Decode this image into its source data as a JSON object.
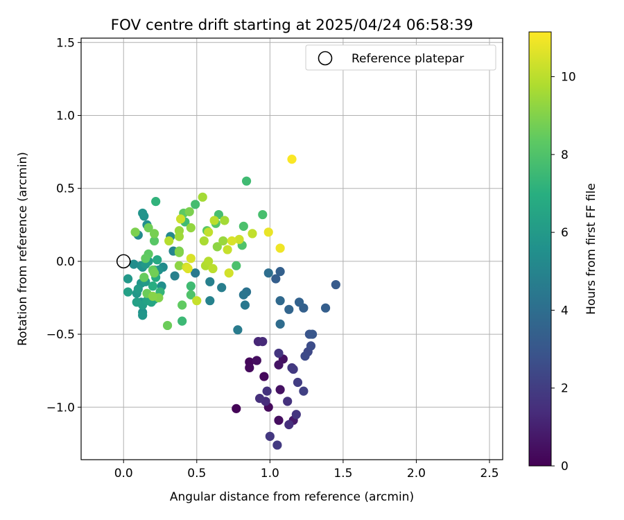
{
  "chart_data": {
    "type": "scatter",
    "title": "FOV centre drift starting at 2025/04/24 06:58:39",
    "xlabel": "Angular distance from reference (arcmin)",
    "ylabel": "Rotation from reference (arcmin)",
    "xlim": [
      -0.29,
      2.59
    ],
    "ylim": [
      -1.36,
      1.53
    ],
    "xticks": [
      0.0,
      0.5,
      1.0,
      1.5,
      2.0,
      2.5
    ],
    "xtick_labels": [
      "0.0",
      "0.5",
      "1.0",
      "1.5",
      "2.0",
      "2.5"
    ],
    "yticks": [
      -1.0,
      -0.5,
      0.0,
      0.5,
      1.0,
      1.5
    ],
    "ytick_labels": [
      "−1.0",
      "−0.5",
      "0.0",
      "0.5",
      "1.0",
      "1.5"
    ],
    "grid": true,
    "legend": {
      "placement": "top-right",
      "entries": [
        {
          "label": "Reference platepar",
          "marker": "open-circle",
          "color": "#000000"
        }
      ]
    },
    "reference_point": {
      "x": 0.0,
      "y": 0.0
    },
    "colorbar": {
      "label": "Hours from first FF file",
      "colormap": "viridis",
      "range": [
        0,
        11.15
      ],
      "ticks": [
        0,
        2,
        4,
        6,
        8,
        10
      ],
      "tick_labels": [
        "0",
        "2",
        "4",
        "6",
        "8",
        "10"
      ]
    },
    "series": [
      {
        "color_by": "hours",
        "points": [
          {
            "x": 0.77,
            "y": -1.01,
            "c": 0.1
          },
          {
            "x": 0.86,
            "y": -0.69,
            "c": 0.2
          },
          {
            "x": 0.86,
            "y": -0.73,
            "c": 0.3
          },
          {
            "x": 0.91,
            "y": -0.68,
            "c": 0.4
          },
          {
            "x": 0.96,
            "y": -0.79,
            "c": 0.2
          },
          {
            "x": 0.99,
            "y": -1.0,
            "c": 0.3
          },
          {
            "x": 1.06,
            "y": -1.09,
            "c": 0.4
          },
          {
            "x": 1.07,
            "y": -0.88,
            "c": 0.5
          },
          {
            "x": 1.09,
            "y": -0.67,
            "c": 0.5
          },
          {
            "x": 1.06,
            "y": -0.71,
            "c": 0.6
          },
          {
            "x": 1.16,
            "y": -1.09,
            "c": 0.8
          },
          {
            "x": 0.92,
            "y": -0.55,
            "c": 1.2
          },
          {
            "x": 0.95,
            "y": -0.55,
            "c": 1.3
          },
          {
            "x": 0.93,
            "y": -0.94,
            "c": 1.5
          },
          {
            "x": 0.97,
            "y": -0.96,
            "c": 1.4
          },
          {
            "x": 0.98,
            "y": -0.89,
            "c": 1.6
          },
          {
            "x": 1.06,
            "y": -0.63,
            "c": 1.7
          },
          {
            "x": 1.12,
            "y": -0.96,
            "c": 1.6
          },
          {
            "x": 1.13,
            "y": -1.12,
            "c": 1.5
          },
          {
            "x": 1.15,
            "y": -0.73,
            "c": 1.8
          },
          {
            "x": 1.16,
            "y": -0.74,
            "c": 1.9
          },
          {
            "x": 1.19,
            "y": -0.83,
            "c": 2.0
          },
          {
            "x": 1.23,
            "y": -0.89,
            "c": 2.1
          },
          {
            "x": 1.18,
            "y": -1.05,
            "c": 1.7
          },
          {
            "x": 1.0,
            "y": -1.2,
            "c": 1.8
          },
          {
            "x": 1.05,
            "y": -1.26,
            "c": 1.9
          },
          {
            "x": 1.26,
            "y": -0.62,
            "c": 2.4
          },
          {
            "x": 1.24,
            "y": -0.65,
            "c": 2.5
          },
          {
            "x": 1.28,
            "y": -0.58,
            "c": 2.6
          },
          {
            "x": 1.27,
            "y": -0.5,
            "c": 2.9
          },
          {
            "x": 1.29,
            "y": -0.5,
            "c": 3.0
          },
          {
            "x": 1.45,
            "y": -0.16,
            "c": 3.2
          },
          {
            "x": 1.38,
            "y": -0.32,
            "c": 3.3
          },
          {
            "x": 1.23,
            "y": -0.32,
            "c": 3.4
          },
          {
            "x": 1.2,
            "y": -0.28,
            "c": 3.5
          },
          {
            "x": 1.13,
            "y": -0.33,
            "c": 3.6
          },
          {
            "x": 1.07,
            "y": -0.27,
            "c": 3.8
          },
          {
            "x": 1.07,
            "y": -0.43,
            "c": 3.9
          },
          {
            "x": 1.04,
            "y": -0.12,
            "c": 3.3
          },
          {
            "x": 1.07,
            "y": -0.07,
            "c": 3.4
          },
          {
            "x": 0.99,
            "y": -0.08,
            "c": 4.0
          },
          {
            "x": 0.84,
            "y": -0.21,
            "c": 4.2
          },
          {
            "x": 0.82,
            "y": -0.23,
            "c": 4.3
          },
          {
            "x": 0.83,
            "y": -0.3,
            "c": 4.4
          },
          {
            "x": 0.78,
            "y": -0.47,
            "c": 4.6
          },
          {
            "x": 0.67,
            "y": -0.18,
            "c": 4.7
          },
          {
            "x": 0.59,
            "y": -0.14,
            "c": 4.8
          },
          {
            "x": 0.59,
            "y": -0.27,
            "c": 4.9
          },
          {
            "x": 0.49,
            "y": -0.08,
            "c": 4.5
          },
          {
            "x": 0.35,
            "y": -0.1,
            "c": 4.8
          },
          {
            "x": 0.34,
            "y": 0.07,
            "c": 5.0
          },
          {
            "x": 0.32,
            "y": 0.17,
            "c": 5.2
          },
          {
            "x": 0.27,
            "y": -0.04,
            "c": 5.3
          },
          {
            "x": 0.26,
            "y": -0.17,
            "c": 5.5
          },
          {
            "x": 0.24,
            "y": -0.06,
            "c": 5.6
          },
          {
            "x": 0.21,
            "y": -0.06,
            "c": 5.4
          },
          {
            "x": 0.14,
            "y": 0.31,
            "c": 5.6
          },
          {
            "x": 0.13,
            "y": 0.33,
            "c": 5.7
          },
          {
            "x": 0.16,
            "y": 0.25,
            "c": 5.5
          },
          {
            "x": 0.1,
            "y": 0.18,
            "c": 5.3
          },
          {
            "x": 0.07,
            "y": -0.02,
            "c": 5.4
          },
          {
            "x": 0.12,
            "y": -0.03,
            "c": 5.5
          },
          {
            "x": 0.13,
            "y": -0.04,
            "c": 5.6
          },
          {
            "x": 0.15,
            "y": -0.02,
            "c": 5.9
          },
          {
            "x": 0.17,
            "y": 0.0,
            "c": 6.0
          },
          {
            "x": 0.15,
            "y": -0.14,
            "c": 6.0
          },
          {
            "x": 0.12,
            "y": -0.15,
            "c": 5.8
          },
          {
            "x": 0.1,
            "y": -0.19,
            "c": 6.1
          },
          {
            "x": 0.09,
            "y": -0.22,
            "c": 5.9
          },
          {
            "x": 0.12,
            "y": -0.28,
            "c": 5.7
          },
          {
            "x": 0.13,
            "y": -0.3,
            "c": 6.2
          },
          {
            "x": 0.13,
            "y": -0.35,
            "c": 5.6
          },
          {
            "x": 0.13,
            "y": -0.37,
            "c": 5.8
          },
          {
            "x": 0.09,
            "y": -0.28,
            "c": 6.3
          },
          {
            "x": 0.03,
            "y": -0.12,
            "c": 5.9
          },
          {
            "x": 0.03,
            "y": -0.21,
            "c": 6.3
          },
          {
            "x": 0.16,
            "y": -0.27,
            "c": 6.4
          },
          {
            "x": 0.19,
            "y": -0.28,
            "c": 6.5
          },
          {
            "x": 0.21,
            "y": -0.26,
            "c": 6.6
          },
          {
            "x": 0.23,
            "y": 0.01,
            "c": 6.7
          },
          {
            "x": 0.22,
            "y": -0.11,
            "c": 6.8
          },
          {
            "x": 0.2,
            "y": -0.17,
            "c": 6.9
          },
          {
            "x": 0.22,
            "y": 0.41,
            "c": 7.2
          },
          {
            "x": 0.25,
            "y": -0.21,
            "c": 7.3
          },
          {
            "x": 0.4,
            "y": -0.41,
            "c": 7.5
          },
          {
            "x": 0.84,
            "y": 0.55,
            "c": 7.6
          },
          {
            "x": 0.95,
            "y": 0.32,
            "c": 7.8
          },
          {
            "x": 0.82,
            "y": 0.24,
            "c": 7.9
          },
          {
            "x": 0.81,
            "y": 0.11,
            "c": 8.0
          },
          {
            "x": 0.77,
            "y": -0.03,
            "c": 7.9
          },
          {
            "x": 0.65,
            "y": 0.32,
            "c": 7.8
          },
          {
            "x": 0.63,
            "y": 0.26,
            "c": 8.1
          },
          {
            "x": 0.57,
            "y": 0.21,
            "c": 8.2
          },
          {
            "x": 0.49,
            "y": 0.39,
            "c": 7.7
          },
          {
            "x": 0.41,
            "y": 0.33,
            "c": 8.3
          },
          {
            "x": 0.42,
            "y": 0.27,
            "c": 7.6
          },
          {
            "x": 0.46,
            "y": -0.17,
            "c": 7.6
          },
          {
            "x": 0.46,
            "y": -0.23,
            "c": 8.0
          },
          {
            "x": 0.4,
            "y": -0.3,
            "c": 8.4
          },
          {
            "x": 0.3,
            "y": -0.44,
            "c": 8.6
          },
          {
            "x": 0.21,
            "y": 0.14,
            "c": 8.2
          },
          {
            "x": 0.17,
            "y": 0.05,
            "c": 8.3
          },
          {
            "x": 0.15,
            "y": 0.02,
            "c": 8.4
          },
          {
            "x": 0.14,
            "y": -0.11,
            "c": 8.5
          },
          {
            "x": 0.16,
            "y": -0.22,
            "c": 8.6
          },
          {
            "x": 0.17,
            "y": 0.23,
            "c": 8.7
          },
          {
            "x": 0.21,
            "y": 0.19,
            "c": 8.8
          },
          {
            "x": 0.08,
            "y": 0.2,
            "c": 8.9
          },
          {
            "x": 0.2,
            "y": -0.06,
            "c": 8.5
          },
          {
            "x": 0.21,
            "y": -0.08,
            "c": 8.7
          },
          {
            "x": 0.24,
            "y": -0.25,
            "c": 9.0
          },
          {
            "x": 0.2,
            "y": -0.24,
            "c": 9.1
          },
          {
            "x": 0.38,
            "y": 0.07,
            "c": 8.8
          },
          {
            "x": 0.38,
            "y": 0.06,
            "c": 9.0
          },
          {
            "x": 0.38,
            "y": -0.03,
            "c": 9.2
          },
          {
            "x": 0.46,
            "y": 0.23,
            "c": 9.3
          },
          {
            "x": 0.38,
            "y": 0.21,
            "c": 9.4
          },
          {
            "x": 0.38,
            "y": 0.17,
            "c": 9.5
          },
          {
            "x": 0.45,
            "y": 0.34,
            "c": 8.9
          },
          {
            "x": 0.54,
            "y": 0.44,
            "c": 9.6
          },
          {
            "x": 0.55,
            "y": 0.14,
            "c": 9.7
          },
          {
            "x": 0.56,
            "y": -0.03,
            "c": 9.8
          },
          {
            "x": 0.58,
            "y": 0.0,
            "c": 9.9
          },
          {
            "x": 0.61,
            "y": -0.05,
            "c": 10.0
          },
          {
            "x": 0.58,
            "y": 0.2,
            "c": 10.1
          },
          {
            "x": 0.62,
            "y": 0.28,
            "c": 10.0
          },
          {
            "x": 0.64,
            "y": 0.1,
            "c": 9.2
          },
          {
            "x": 0.68,
            "y": 0.14,
            "c": 9.4
          },
          {
            "x": 0.69,
            "y": 0.28,
            "c": 9.6
          },
          {
            "x": 0.71,
            "y": 0.08,
            "c": 10.2
          },
          {
            "x": 0.72,
            "y": -0.08,
            "c": 10.4
          },
          {
            "x": 0.74,
            "y": 0.14,
            "c": 10.5
          },
          {
            "x": 0.79,
            "y": 0.15,
            "c": 10.3
          },
          {
            "x": 0.88,
            "y": 0.19,
            "c": 10.1
          },
          {
            "x": 0.31,
            "y": 0.14,
            "c": 9.9
          },
          {
            "x": 0.39,
            "y": 0.29,
            "c": 10.3
          },
          {
            "x": 0.43,
            "y": -0.04,
            "c": 10.4
          },
          {
            "x": 0.44,
            "y": -0.05,
            "c": 10.6
          },
          {
            "x": 0.46,
            "y": 0.02,
            "c": 10.5
          },
          {
            "x": 0.5,
            "y": -0.27,
            "c": 10.2
          },
          {
            "x": 0.99,
            "y": 0.2,
            "c": 10.8
          },
          {
            "x": 1.07,
            "y": 0.09,
            "c": 10.9
          },
          {
            "x": 1.15,
            "y": 0.7,
            "c": 11.1
          }
        ]
      }
    ]
  }
}
